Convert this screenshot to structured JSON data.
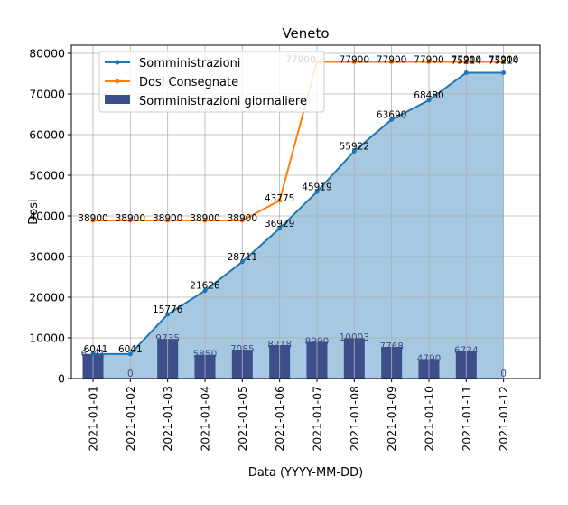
{
  "chart_data": {
    "type": "line",
    "title": "Veneto",
    "xlabel": "Data (YYYY-MM-DD)",
    "ylabel": "Dosi",
    "categories": [
      "2021-01-01",
      "2021-01-02",
      "2021-01-03",
      "2021-01-04",
      "2021-01-05",
      "2021-01-06",
      "2021-01-07",
      "2021-01-08",
      "2021-01-09",
      "2021-01-10",
      "2021-01-11",
      "2021-01-12"
    ],
    "ylim": [
      0,
      82000
    ],
    "yticks": [
      "0",
      "10000",
      "20000",
      "30000",
      "40000",
      "50000",
      "60000",
      "70000",
      "80000"
    ],
    "grid": true,
    "legend_position": "top-left",
    "series": [
      {
        "name": "Somministrazioni",
        "kind": "line-area",
        "color": "#1f77b4",
        "area_color": "#a6c8e0",
        "values": [
          6041,
          6041,
          15776,
          21626,
          28711,
          36929,
          45919,
          55922,
          63690,
          68480,
          75214,
          75214
        ],
        "labels": [
          "6041",
          "6041",
          "15776",
          "21626",
          "28711",
          "36929",
          "45919",
          "55922",
          "63690",
          "68480",
          "75214",
          "75214"
        ]
      },
      {
        "name": "Dosi Consegnate",
        "kind": "line",
        "color": "#ff7f0e",
        "values": [
          38900,
          38900,
          38900,
          38900,
          38900,
          43775,
          77900,
          77900,
          77900,
          77900,
          77900,
          77900
        ],
        "labels": [
          "38900",
          "38900",
          "38900",
          "38900",
          "38900",
          "43775",
          "77900",
          "77900",
          "77900",
          "77900",
          "77900",
          "77900"
        ]
      },
      {
        "name": "Somministrazioni giornaliere",
        "kind": "bar",
        "color": "#3d4f8a",
        "values": [
          6041,
          0,
          9735,
          5850,
          7085,
          8218,
          8990,
          10003,
          7768,
          4790,
          6734,
          0
        ],
        "labels": [
          "6041",
          "0",
          "9735",
          "5850",
          "7085",
          "8218",
          "8990",
          "10003",
          "7768",
          "4790",
          "6734",
          "0"
        ]
      }
    ]
  }
}
